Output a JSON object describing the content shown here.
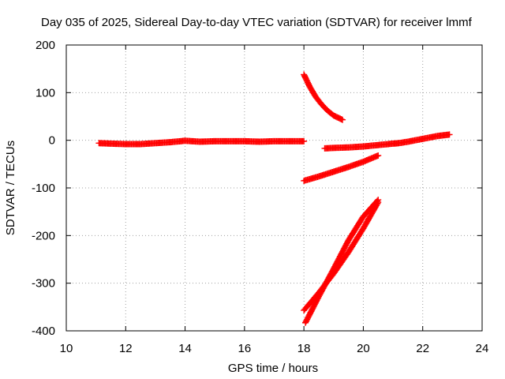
{
  "chart_data": {
    "type": "scatter",
    "title": "Day 035 of 2025, Sidereal Day-to-day VTEC variation (SDTVAR) for receiver lmmf",
    "xlabel": "GPS time / hours",
    "ylabel": "SDTVAR / TECUs",
    "xlim": [
      10,
      24
    ],
    "ylim": [
      -400,
      200
    ],
    "xticks": [
      "10",
      "12",
      "14",
      "16",
      "18",
      "20",
      "22",
      "24"
    ],
    "yticks": [
      "200",
      "100",
      "0",
      "-100",
      "-200",
      "-300",
      "-400"
    ],
    "grid": true,
    "legend": "none",
    "marker": "+",
    "color": "#ff0000",
    "series": [
      {
        "x": [
          11.1,
          11.5,
          12.0,
          12.5,
          13.0,
          13.5,
          14.0,
          14.5,
          15.0,
          15.5,
          16.0,
          16.5,
          17.0,
          17.5,
          18.0
        ],
        "values": [
          -6,
          -7,
          -8,
          -8,
          -6,
          -4,
          -1,
          -3,
          -2,
          -2,
          -2,
          -3,
          -2,
          -2,
          -2
        ]
      },
      {
        "x": [
          18.0,
          18.2,
          18.4,
          18.6,
          18.8,
          19.0,
          19.3
        ],
        "values": [
          138,
          112,
          91,
          75,
          62,
          52,
          43
        ]
      },
      {
        "x": [
          18.7,
          19.0,
          19.5,
          20.0,
          20.5,
          21.0,
          21.2,
          21.5,
          22.0,
          22.5,
          22.9
        ],
        "values": [
          -17,
          -16,
          -15,
          -13,
          -10,
          -7,
          -6,
          -3,
          3,
          9,
          12
        ]
      },
      {
        "x": [
          18.0,
          18.5,
          19.0,
          19.5,
          20.0,
          20.5
        ],
        "values": [
          -85,
          -76,
          -66,
          -56,
          -45,
          -32
        ]
      },
      {
        "x": [
          18.0,
          18.5,
          19.0,
          19.5,
          20.0,
          20.5
        ],
        "values": [
          -357,
          -320,
          -280,
          -235,
          -185,
          -130
        ]
      },
      {
        "x": [
          18.05,
          18.5,
          19.0,
          19.5,
          20.0,
          20.5
        ],
        "values": [
          -383,
          -328,
          -270,
          -210,
          -160,
          -125
        ]
      }
    ]
  }
}
